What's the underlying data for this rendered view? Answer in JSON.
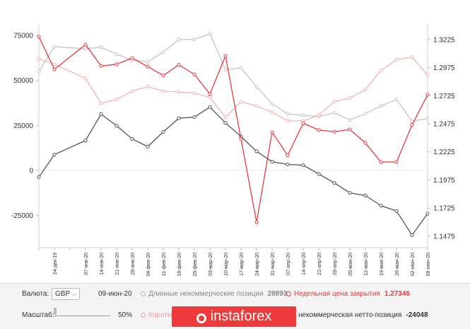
{
  "chart_data": {
    "type": "line",
    "categories": [
      "",
      "24-дек-19",
      "",
      "07-янв-20",
      "14-янв-20",
      "21-янв-20",
      "28-янв-20",
      "04-фев-20",
      "11-фев-20",
      "18-фев-20",
      "25-фев-20",
      "03-мар-20",
      "10-мар-20",
      "17-мар-20",
      "24-мар-20",
      "31-мар-20",
      "07-апр-20",
      "14-апр-20",
      "21-апр-20",
      "28-апр-20",
      "05-мая-20",
      "12-мая-20",
      "19-мая-20",
      "26-мая-20",
      "02-июн-20",
      "09-июн-20"
    ],
    "series": [
      {
        "name": "Длинные некоммерческие позиции",
        "axis": "left",
        "color": "#c4c4c4",
        "values": [
          55000,
          68800,
          null,
          67600,
          68500,
          64600,
          61300,
          60400,
          65800,
          72800,
          72800,
          76000,
          56000,
          57000,
          46500,
          37000,
          31400,
          30600,
          30000,
          32000,
          28000,
          31600,
          35800,
          39400,
          27300,
          28893
        ]
      },
      {
        "name": "Короткие некоммерческие позиции",
        "axis": "left",
        "color": "#f5b2b2",
        "values": [
          62000,
          59000,
          null,
          51200,
          37300,
          39400,
          44000,
          46600,
          44000,
          43600,
          43000,
          40600,
          29500,
          38200,
          35800,
          32400,
          27600,
          27400,
          30800,
          38200,
          40200,
          45000,
          55500,
          61600,
          63000,
          53000
        ]
      },
      {
        "name": "Некоммерческая нетто-позиция",
        "axis": "left",
        "color": "#555555",
        "values": [
          -3700,
          8800,
          null,
          16600,
          31300,
          24800,
          17500,
          13200,
          21400,
          29000,
          29600,
          35200,
          26400,
          18800,
          10600,
          4800,
          3300,
          2900,
          -2000,
          -7000,
          -12500,
          -14000,
          -19600,
          -22600,
          -36000,
          -24048
        ]
      },
      {
        "name": "Недельная цена закрытия",
        "axis": "right",
        "color": "#e8383d",
        "values": [
          1.325,
          1.296,
          null,
          1.318,
          1.299,
          1.3005,
          1.306,
          1.2985,
          1.2905,
          1.3,
          1.2915,
          1.274,
          1.308,
          1.234,
          1.16,
          1.24,
          1.2195,
          1.248,
          1.242,
          1.2405,
          1.2425,
          1.2305,
          1.2135,
          1.2135,
          1.2465,
          1.27346
        ]
      }
    ],
    "y_left": {
      "ticks": [
        75000,
        50000,
        25000,
        0,
        -25000
      ],
      "tick_labels": [
        "75000",
        "50000",
        "25000",
        "0",
        "-25000"
      ],
      "lim": [
        -41000,
        79000
      ]
    },
    "y_right": {
      "ticks": [
        1.3225,
        1.2975,
        1.2725,
        1.2475,
        1.2225,
        1.1975,
        1.1725,
        1.1475
      ],
      "tick_labels": [
        "1.3225",
        "1.2975",
        "1.2725",
        "1.2475",
        "1.2225",
        "1.1975",
        "1.1725",
        "1.1475"
      ],
      "lim": [
        1.1405,
        1.3325
      ]
    },
    "grid": false
  },
  "controls": {
    "currency_label": "Валюта:",
    "currency_value": "GBP",
    "date": "09-июн-20",
    "zoom_label": "Масштаб:",
    "zoom_value": "50%",
    "zoom_fraction": 0.5
  },
  "legend": {
    "long_label": "Длинные некоммерческие позиции",
    "long_value": "28893",
    "close_label": "Недельная цена закрытия",
    "close_value": "1.27346",
    "short_label": "Коротки",
    "net_label": "некоммерческая нетто-позиция",
    "net_value": "-24048"
  },
  "logo": {
    "text": "instaforex"
  }
}
